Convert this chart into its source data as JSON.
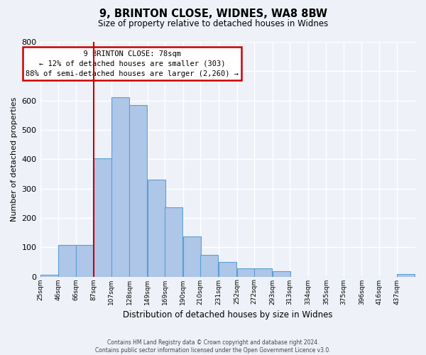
{
  "title": "9, BRINTON CLOSE, WIDNES, WA8 8BW",
  "subtitle": "Size of property relative to detached houses in Widnes",
  "xlabel": "Distribution of detached houses by size in Widnes",
  "ylabel": "Number of detached properties",
  "bar_labels": [
    "25sqm",
    "46sqm",
    "66sqm",
    "87sqm",
    "107sqm",
    "128sqm",
    "149sqm",
    "169sqm",
    "190sqm",
    "210sqm",
    "231sqm",
    "252sqm",
    "272sqm",
    "293sqm",
    "313sqm",
    "334sqm",
    "355sqm",
    "375sqm",
    "396sqm",
    "416sqm",
    "437sqm"
  ],
  "bar_values": [
    5,
    107,
    107,
    403,
    610,
    585,
    330,
    237,
    136,
    75,
    50,
    27,
    27,
    17,
    0,
    0,
    0,
    0,
    0,
    0,
    8
  ],
  "bar_color": "#aec6e8",
  "bar_edge_color": "#5a9fd4",
  "property_label": "9 BRINTON CLOSE: 78sqm",
  "pct_smaller": 12,
  "n_smaller": 303,
  "pct_larger_semi": 88,
  "n_larger_semi": 2260,
  "vline_x_idx": 3,
  "vline_color": "#cc0000",
  "ylim": [
    0,
    800
  ],
  "yticks": [
    0,
    100,
    200,
    300,
    400,
    500,
    600,
    700,
    800
  ],
  "annotation_box_color": "#ffffff",
  "annotation_box_edge_color": "#cc0000",
  "footer_line1": "Contains HM Land Registry data © Crown copyright and database right 2024.",
  "footer_line2": "Contains public sector information licensed under the Open Government Licence v3.0.",
  "bg_color": "#eef2f8",
  "grid_color": "#ffffff",
  "bin_width": 21
}
